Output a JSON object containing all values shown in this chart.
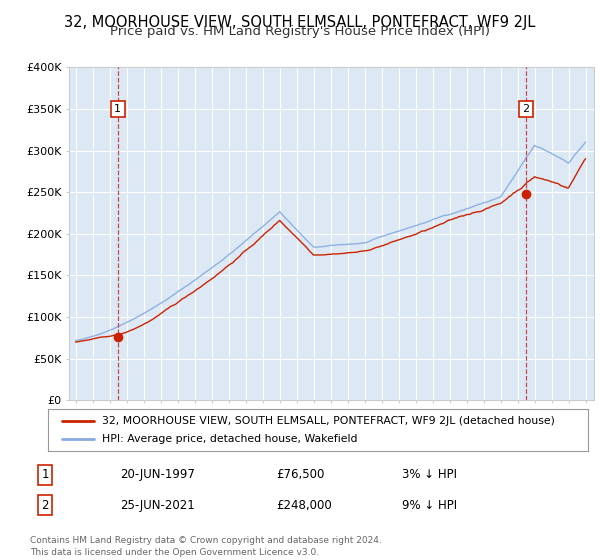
{
  "title": "32, MOORHOUSE VIEW, SOUTH ELMSALL, PONTEFRACT, WF9 2JL",
  "subtitle": "Price paid vs. HM Land Registry's House Price Index (HPI)",
  "ylim": [
    0,
    400000
  ],
  "yticks": [
    0,
    50000,
    100000,
    150000,
    200000,
    250000,
    300000,
    350000,
    400000
  ],
  "ytick_labels": [
    "£0",
    "£50K",
    "£100K",
    "£150K",
    "£200K",
    "£250K",
    "£300K",
    "£350K",
    "£400K"
  ],
  "xlim_start": 1994.6,
  "xlim_end": 2025.5,
  "plot_bg_color": "#dce9f5",
  "grid_color": "#ffffff",
  "line_color_red": "#cc2200",
  "line_color_blue": "#88aadd",
  "marker_color": "#cc2200",
  "legend_label_red": "32, MOORHOUSE VIEW, SOUTH ELMSALL, PONTEFRACT, WF9 2JL (detached house)",
  "legend_label_blue": "HPI: Average price, detached house, Wakefield",
  "point1_x": 1997.47,
  "point1_y": 76500,
  "point1_label": "1",
  "point1_date": "20-JUN-1997",
  "point1_price": "£76,500",
  "point1_hpi": "3% ↓ HPI",
  "point2_x": 2021.48,
  "point2_y": 248000,
  "point2_label": "2",
  "point2_date": "25-JUN-2021",
  "point2_price": "£248,000",
  "point2_hpi": "9% ↓ HPI",
  "footer": "Contains HM Land Registry data © Crown copyright and database right 2024.\nThis data is licensed under the Open Government Licence v3.0.",
  "title_fontsize": 10.5,
  "subtitle_fontsize": 9.5
}
